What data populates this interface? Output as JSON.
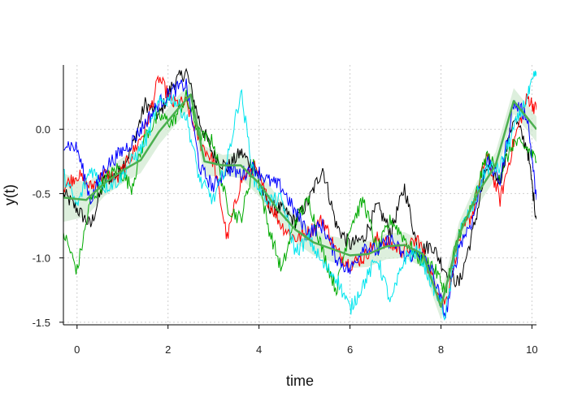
{
  "chart_data": {
    "type": "line",
    "title": "",
    "xlabel": "time",
    "ylabel": "y(t)",
    "xlim": [
      -0.3,
      10.1
    ],
    "ylim": [
      -1.52,
      0.5
    ],
    "x_ticks": [
      0,
      2,
      4,
      6,
      8,
      10
    ],
    "x_tick_labels": [
      "0",
      "2",
      "4",
      "6",
      "8",
      "10"
    ],
    "y_ticks": [
      0.0,
      -0.5,
      -1.0,
      -1.5
    ],
    "y_tick_labels": [
      "0.0",
      "-0.5",
      "-1.0",
      "-1.5"
    ],
    "grid": true,
    "legend": "none",
    "trend_color": "#4caf50",
    "band_color": "#cfe8cf",
    "trend": {
      "x": [
        -0.3,
        0.2,
        0.6,
        1.0,
        1.4,
        1.8,
        2.2,
        2.5,
        2.8,
        3.2,
        3.6,
        4.0,
        4.4,
        4.8,
        5.2,
        5.6,
        6.0,
        6.4,
        6.8,
        7.2,
        7.6,
        8.0,
        8.4,
        8.8,
        9.2,
        9.6,
        10.1
      ],
      "y": [
        -0.53,
        -0.55,
        -0.42,
        -0.32,
        -0.24,
        -0.02,
        0.15,
        0.27,
        -0.25,
        -0.28,
        -0.28,
        -0.42,
        -0.62,
        -0.78,
        -0.88,
        -0.93,
        -0.98,
        -0.97,
        -0.91,
        -0.9,
        -0.97,
        -1.38,
        -0.82,
        -0.5,
        -0.28,
        0.22,
        0.0
      ],
      "lower": [
        -0.72,
        -0.68,
        -0.52,
        -0.42,
        -0.34,
        -0.12,
        0.05,
        0.17,
        -0.37,
        -0.36,
        -0.38,
        -0.52,
        -0.72,
        -0.88,
        -0.98,
        -1.03,
        -1.08,
        -1.07,
        -1.01,
        -1.0,
        -1.07,
        -1.48,
        -0.92,
        -0.6,
        -0.38,
        0.12,
        -0.1
      ],
      "upper": [
        -0.34,
        -0.42,
        -0.32,
        -0.22,
        -0.14,
        0.08,
        0.25,
        0.37,
        -0.13,
        -0.2,
        -0.18,
        -0.32,
        -0.52,
        -0.68,
        -0.78,
        -0.83,
        -0.86,
        -0.87,
        -0.81,
        -0.8,
        -0.87,
        -1.28,
        -0.72,
        -0.4,
        -0.18,
        0.32,
        0.1
      ]
    },
    "series": [
      {
        "color": "#000000",
        "x": [
          -0.3,
          0.0,
          0.3,
          0.6,
          0.9,
          1.2,
          1.5,
          1.8,
          2.1,
          2.4,
          2.7,
          3.0,
          3.3,
          3.6,
          3.9,
          4.2,
          4.5,
          4.8,
          5.1,
          5.4,
          5.7,
          6.0,
          6.3,
          6.6,
          6.9,
          7.2,
          7.5,
          7.8,
          8.1,
          8.4,
          8.7,
          9.0,
          9.3,
          9.6,
          9.9,
          10.1
        ],
        "y": [
          -0.5,
          -0.62,
          -0.75,
          -0.4,
          -0.35,
          -0.15,
          0.2,
          0.1,
          0.35,
          0.45,
          0.05,
          -0.2,
          -0.3,
          -0.18,
          -0.3,
          -0.6,
          -0.62,
          -0.72,
          -0.55,
          -0.3,
          -0.75,
          -0.9,
          -0.85,
          -0.6,
          -0.8,
          -0.45,
          -0.95,
          -0.9,
          -1.1,
          -1.2,
          -0.8,
          -0.3,
          -0.4,
          0.1,
          -0.15,
          -0.7
        ]
      },
      {
        "color": "#ff0000",
        "x": [
          -0.3,
          0.0,
          0.3,
          0.6,
          0.9,
          1.2,
          1.5,
          1.8,
          2.1,
          2.4,
          2.7,
          3.0,
          3.3,
          3.6,
          3.9,
          4.2,
          4.5,
          4.8,
          5.1,
          5.4,
          5.7,
          6.0,
          6.3,
          6.6,
          6.9,
          7.2,
          7.5,
          7.8,
          8.1,
          8.4,
          8.7,
          9.0,
          9.3,
          9.6,
          9.9,
          10.1
        ],
        "y": [
          -0.45,
          -0.35,
          -0.45,
          -0.35,
          -0.38,
          -0.2,
          0.0,
          0.4,
          0.2,
          0.2,
          -0.1,
          -0.25,
          -0.85,
          -0.4,
          -0.3,
          -0.55,
          -0.75,
          -0.85,
          -0.8,
          -0.7,
          -0.95,
          -1.05,
          -1.0,
          -0.85,
          -0.9,
          -0.95,
          -0.85,
          -1.15,
          -1.35,
          -0.85,
          -0.65,
          -0.2,
          -0.55,
          -0.1,
          0.25,
          0.15
        ]
      },
      {
        "color": "#00aa00",
        "x": [
          -0.3,
          0.0,
          0.3,
          0.6,
          0.9,
          1.2,
          1.5,
          1.8,
          2.1,
          2.4,
          2.7,
          3.0,
          3.3,
          3.6,
          3.9,
          4.2,
          4.5,
          4.8,
          5.1,
          5.4,
          5.7,
          6.0,
          6.3,
          6.6,
          6.9,
          7.2,
          7.5,
          7.8,
          8.1,
          8.4,
          8.7,
          9.0,
          9.3,
          9.6,
          9.9,
          10.1
        ],
        "y": [
          -0.8,
          -1.1,
          -0.55,
          -0.4,
          -0.3,
          -0.45,
          -0.05,
          0.1,
          0.05,
          0.25,
          -0.05,
          -0.1,
          -0.6,
          -0.7,
          -0.25,
          -0.75,
          -1.1,
          -0.7,
          -0.55,
          -0.95,
          -1.25,
          -0.75,
          -0.55,
          -0.95,
          -0.7,
          -0.85,
          -1.0,
          -1.05,
          -1.25,
          -0.8,
          -0.6,
          -0.2,
          -0.35,
          -0.1,
          -0.15,
          -0.25
        ]
      },
      {
        "color": "#0000ff",
        "x": [
          -0.3,
          0.0,
          0.3,
          0.6,
          0.9,
          1.2,
          1.5,
          1.8,
          2.1,
          2.4,
          2.7,
          3.0,
          3.3,
          3.6,
          3.9,
          4.2,
          4.5,
          4.8,
          5.1,
          5.4,
          5.7,
          6.0,
          6.3,
          6.6,
          6.9,
          7.2,
          7.5,
          7.8,
          8.1,
          8.4,
          8.7,
          9.0,
          9.3,
          9.6,
          9.9,
          10.1
        ],
        "y": [
          -0.1,
          -0.15,
          -0.55,
          -0.3,
          -0.2,
          -0.1,
          0.05,
          0.2,
          0.3,
          0.35,
          -0.3,
          -0.45,
          -0.3,
          -0.35,
          -0.3,
          -0.4,
          -0.45,
          -0.65,
          -0.8,
          -0.75,
          -1.0,
          -1.1,
          -0.9,
          -0.95,
          -0.85,
          -1.0,
          -0.95,
          -1.1,
          -1.45,
          -0.9,
          -0.7,
          -0.25,
          -0.4,
          0.2,
          0.1,
          -0.55
        ]
      },
      {
        "color": "#00e5ee",
        "x": [
          -0.3,
          0.0,
          0.3,
          0.6,
          0.9,
          1.2,
          1.5,
          1.8,
          2.1,
          2.4,
          2.7,
          3.0,
          3.3,
          3.6,
          3.9,
          4.2,
          4.5,
          4.8,
          5.1,
          5.4,
          5.7,
          6.0,
          6.3,
          6.6,
          6.9,
          7.2,
          7.5,
          7.8,
          8.1,
          8.4,
          8.7,
          9.0,
          9.3,
          9.6,
          9.9,
          10.1
        ],
        "y": [
          -0.35,
          -0.6,
          -0.3,
          -0.45,
          -0.4,
          -0.25,
          -0.1,
          0.2,
          0.25,
          0.1,
          -0.4,
          -0.55,
          -0.25,
          0.3,
          -0.4,
          -0.55,
          -0.55,
          -0.95,
          -0.85,
          -1.05,
          -1.15,
          -1.4,
          -1.2,
          -1.0,
          -1.35,
          -1.0,
          -0.95,
          -1.2,
          -1.45,
          -0.8,
          -0.6,
          -0.3,
          -0.3,
          0.0,
          0.25,
          0.45
        ]
      }
    ]
  }
}
